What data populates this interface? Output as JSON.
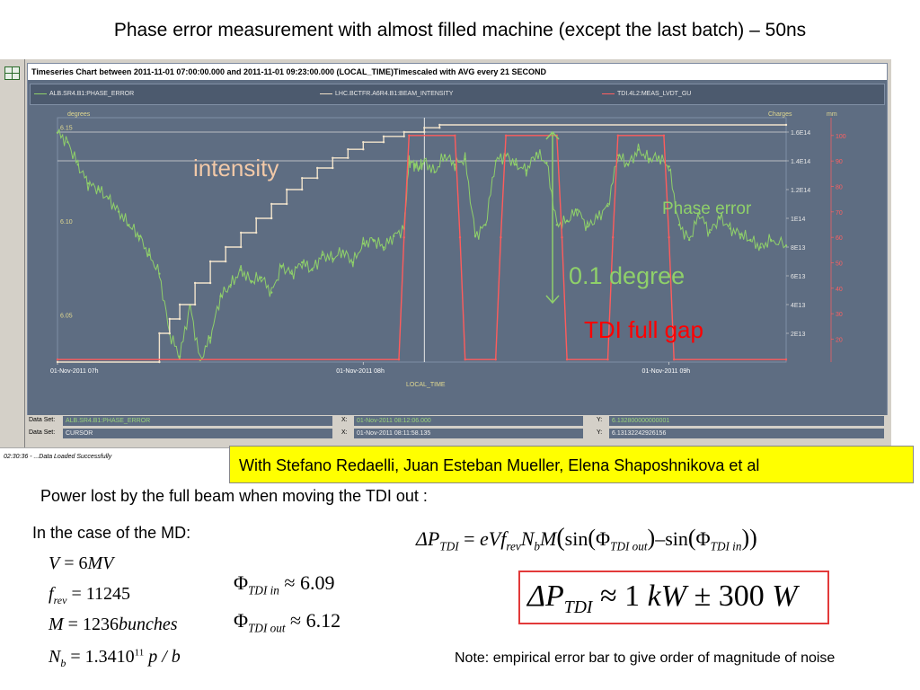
{
  "slide": {
    "title": "Phase error measurement with almost filled machine (except the last batch) – 50ns",
    "credits": "With Stefano Redaelli, Juan Esteban Mueller, Elena Shaposhnikova et al",
    "power_lost": "Power lost by the full beam when moving the TDI out :",
    "md_case": "In the case of the MD:",
    "note": "Note: empirical error bar to give order of magnitude of noise"
  },
  "app": {
    "chart_header": "Timeseries Chart between 2011-11-01 07:00:00.000 and 2011-11-01 09:23:00.000 (LOCAL_TIME)Timescaled with AVG every 21 SECOND",
    "status": "02:30:36 - ...Data Loaded Successfully",
    "legend": [
      {
        "label": "ALB.SR4.B1:PHASE_ERROR",
        "color": "#8fd06a"
      },
      {
        "label": "LHC.BCTFR.A6R4.B1:BEAM_INTENSITY",
        "color": "#f0e0c8"
      },
      {
        "label": "TDI.4L2:MEAS_LVDT_GU",
        "color": "#ff6060"
      }
    ],
    "dataset_rows": [
      {
        "label": "Data Set:",
        "name": "ALB.SR4.B1:PHASE_ERROR",
        "x_key": "X:",
        "x": "01-Nov-2011 08:12:06.000",
        "y_key": "Y:",
        "y": "6.132800000000001"
      },
      {
        "label": "Data Set:",
        "name": "CURSOR",
        "x_key": "X:",
        "x": "01-Nov-2011 08:11:58.135",
        "y_key": "Y:",
        "y": "6.13132242926156"
      }
    ]
  },
  "annotations": {
    "intensity": "intensity",
    "phase_error": "Phase error",
    "degree": "0.1 degree",
    "tdi": "TDI full gap"
  },
  "colors": {
    "plot_bg": "#5e6d82",
    "phase": "#8fd06a",
    "intensity": "#f2e4cc",
    "tdi": "#ff5c5c",
    "annot_intensity": "#f2c9a8",
    "annot_green": "#8fd06a",
    "annot_red": "#ff0000"
  },
  "chart_data": {
    "type": "line",
    "title": "Timeseries Chart between 2011-11-01 07:00:00.000 and 2011-11-01 09:23:00.000 (LOCAL_TIME)Timescaled with AVG every 21 SECOND",
    "xlabel": "LOCAL_TIME",
    "x_ticks": [
      "01-Nov-2011 07h",
      "01-Nov-2011 08h",
      "01-Nov-2011 09h"
    ],
    "x_range_min": [
      0,
      143
    ],
    "axes": {
      "left": {
        "label": "degrees",
        "range": [
          6.025,
          6.155
        ],
        "ticks": [
          "6.15",
          "6.10",
          "6.05"
        ]
      },
      "right1": {
        "label": "Charges",
        "range": [
          0,
          170000000000000.0
        ],
        "ticks": [
          "1.6E14",
          "1.4E14",
          "1.2E14",
          "1E14",
          "8E13",
          "6E13",
          "4E13",
          "2E13"
        ]
      },
      "right2": {
        "label": "mm",
        "range": [
          11,
          107
        ],
        "ticks": [
          "100",
          "90",
          "80",
          "70",
          "60",
          "50",
          "40",
          "30",
          "20"
        ]
      }
    },
    "series": [
      {
        "name": "ALB.SR4.B1:PHASE_ERROR",
        "axis": "left",
        "x": [
          0,
          2,
          4,
          6,
          8,
          10,
          12,
          14,
          16,
          18,
          20,
          22,
          24,
          26,
          28,
          30,
          32,
          34,
          36,
          38,
          40,
          42,
          44,
          46,
          48,
          50,
          52,
          54,
          56,
          58,
          60,
          62,
          64,
          66,
          68,
          69,
          70,
          71,
          72,
          74,
          76,
          78,
          80,
          82,
          84,
          86,
          88,
          90,
          92,
          94,
          96,
          98,
          100,
          102,
          104,
          106,
          108,
          110,
          112,
          114,
          116,
          118,
          120,
          122,
          124,
          126,
          128,
          130,
          132,
          134,
          136,
          138,
          140,
          143
        ],
        "values": [
          6.147,
          6.142,
          6.13,
          6.12,
          6.117,
          6.112,
          6.105,
          6.098,
          6.092,
          6.082,
          6.072,
          6.04,
          6.028,
          6.055,
          6.026,
          6.038,
          6.06,
          6.066,
          6.074,
          6.068,
          6.07,
          6.062,
          6.076,
          6.072,
          6.078,
          6.074,
          6.082,
          6.08,
          6.084,
          6.078,
          6.088,
          6.09,
          6.086,
          6.092,
          6.096,
          6.132,
          6.13,
          6.128,
          6.132,
          6.126,
          6.135,
          6.13,
          6.133,
          6.092,
          6.098,
          6.132,
          6.135,
          6.13,
          6.127,
          6.136,
          6.131,
          6.098,
          6.1,
          6.106,
          6.097,
          6.102,
          6.108,
          6.135,
          6.13,
          6.138,
          6.133,
          6.134,
          6.129,
          6.098,
          6.09,
          6.104,
          6.094,
          6.102,
          6.096,
          6.093,
          6.09,
          6.086,
          6.09,
          6.087
        ]
      },
      {
        "name": "LHC.BCTFR.A6R4.B1:BEAM_INTENSITY",
        "axis": "right1",
        "x": [
          0,
          20,
          20,
          22,
          22,
          24,
          24,
          27,
          27,
          30,
          30,
          33,
          33,
          36,
          36,
          39,
          39,
          42,
          42,
          45,
          45,
          48,
          48,
          51,
          51,
          54,
          54,
          57,
          57,
          60,
          60,
          64,
          64,
          68,
          68,
          72,
          72,
          75,
          75,
          143
        ],
        "values": [
          0,
          0,
          20000000000000.0,
          20000000000000.0,
          30000000000000.0,
          30000000000000.0,
          40000000000000.0,
          40000000000000.0,
          55000000000000.0,
          55000000000000.0,
          70000000000000.0,
          70000000000000.0,
          80000000000000.0,
          80000000000000.0,
          90000000000000.0,
          90000000000000.0,
          100000000000000.0,
          100000000000000.0,
          110000000000000.0,
          110000000000000.0,
          120000000000000.0,
          120000000000000.0,
          128000000000000.0,
          128000000000000.0,
          135000000000000.0,
          135000000000000.0,
          142000000000000.0,
          142000000000000.0,
          148000000000000.0,
          148000000000000.0,
          153000000000000.0,
          153000000000000.0,
          157000000000000.0,
          157000000000000.0,
          160000000000000.0,
          160000000000000.0,
          163000000000000.0,
          163000000000000.0,
          165000000000000.0,
          165000000000000.0
        ]
      },
      {
        "name": "TDI.4L2:MEAS_LVDT_GU",
        "axis": "right2",
        "x": [
          0,
          67,
          68,
          69,
          78,
          79,
          80,
          86,
          87,
          88,
          98,
          99,
          100,
          108,
          109,
          110,
          119,
          120,
          121,
          143
        ],
        "values": [
          12,
          12,
          60,
          100,
          100,
          60,
          12,
          12,
          60,
          100,
          100,
          60,
          12,
          12,
          60,
          100,
          100,
          60,
          12,
          12
        ]
      }
    ],
    "legend_position": "top",
    "grid": false
  },
  "math": {
    "formula": {
      "lhs": "ΔP",
      "lhs_sub": "TDI",
      "rhs": "eVf",
      "rhs_sub": "rev",
      "nb": "N",
      "nb_sub": "b",
      "m": "M",
      "sin1": "sin",
      "phi1_sub": "TDI out",
      "sin2": "sin",
      "phi2_sub": "TDI in"
    },
    "params": [
      {
        "sym": "V",
        "val": " = 6",
        "unit": "MV"
      },
      {
        "sym": "f",
        "sub": "rev",
        "val": " = 11245",
        "unit": ""
      },
      {
        "sym": "M",
        "val": " = 1236",
        "unit": "bunches"
      },
      {
        "sym": "N",
        "sub": "b",
        "val": " = 1.3410",
        "sup": "11",
        "unit": "  p / b"
      }
    ],
    "phi": [
      {
        "sub": "TDI in",
        "val": "≈ 6.09"
      },
      {
        "sub": "TDI out",
        "val": "≈ 6.12"
      }
    ],
    "result": {
      "lhs": "ΔP",
      "sub": "TDI",
      "op": " ≈ 1 ",
      "unit1": "kW",
      "pm": " ± 300 ",
      "unit2": "W"
    }
  }
}
